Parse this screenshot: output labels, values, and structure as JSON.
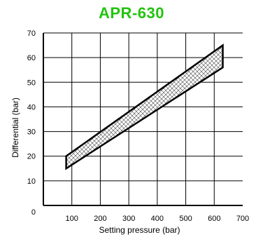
{
  "chart_data": {
    "type": "area",
    "title": "APR-630",
    "title_color": "#22c40e",
    "xlabel": "Setting pressure (bar)",
    "ylabel": "Differential (bar)",
    "xlim": [
      0,
      700
    ],
    "ylim": [
      0,
      70
    ],
    "x_ticks": [
      100,
      200,
      300,
      400,
      500,
      600,
      700
    ],
    "y_ticks": [
      10,
      20,
      30,
      40,
      50,
      60,
      70
    ],
    "origin_label": "0",
    "grid": true,
    "fill_pattern": "crosshatch",
    "series": [
      {
        "region": [
          {
            "x": 80,
            "y": 20
          },
          {
            "x": 630,
            "y": 65
          },
          {
            "x": 630,
            "y": 56
          },
          {
            "x": 80,
            "y": 15
          }
        ]
      }
    ]
  }
}
